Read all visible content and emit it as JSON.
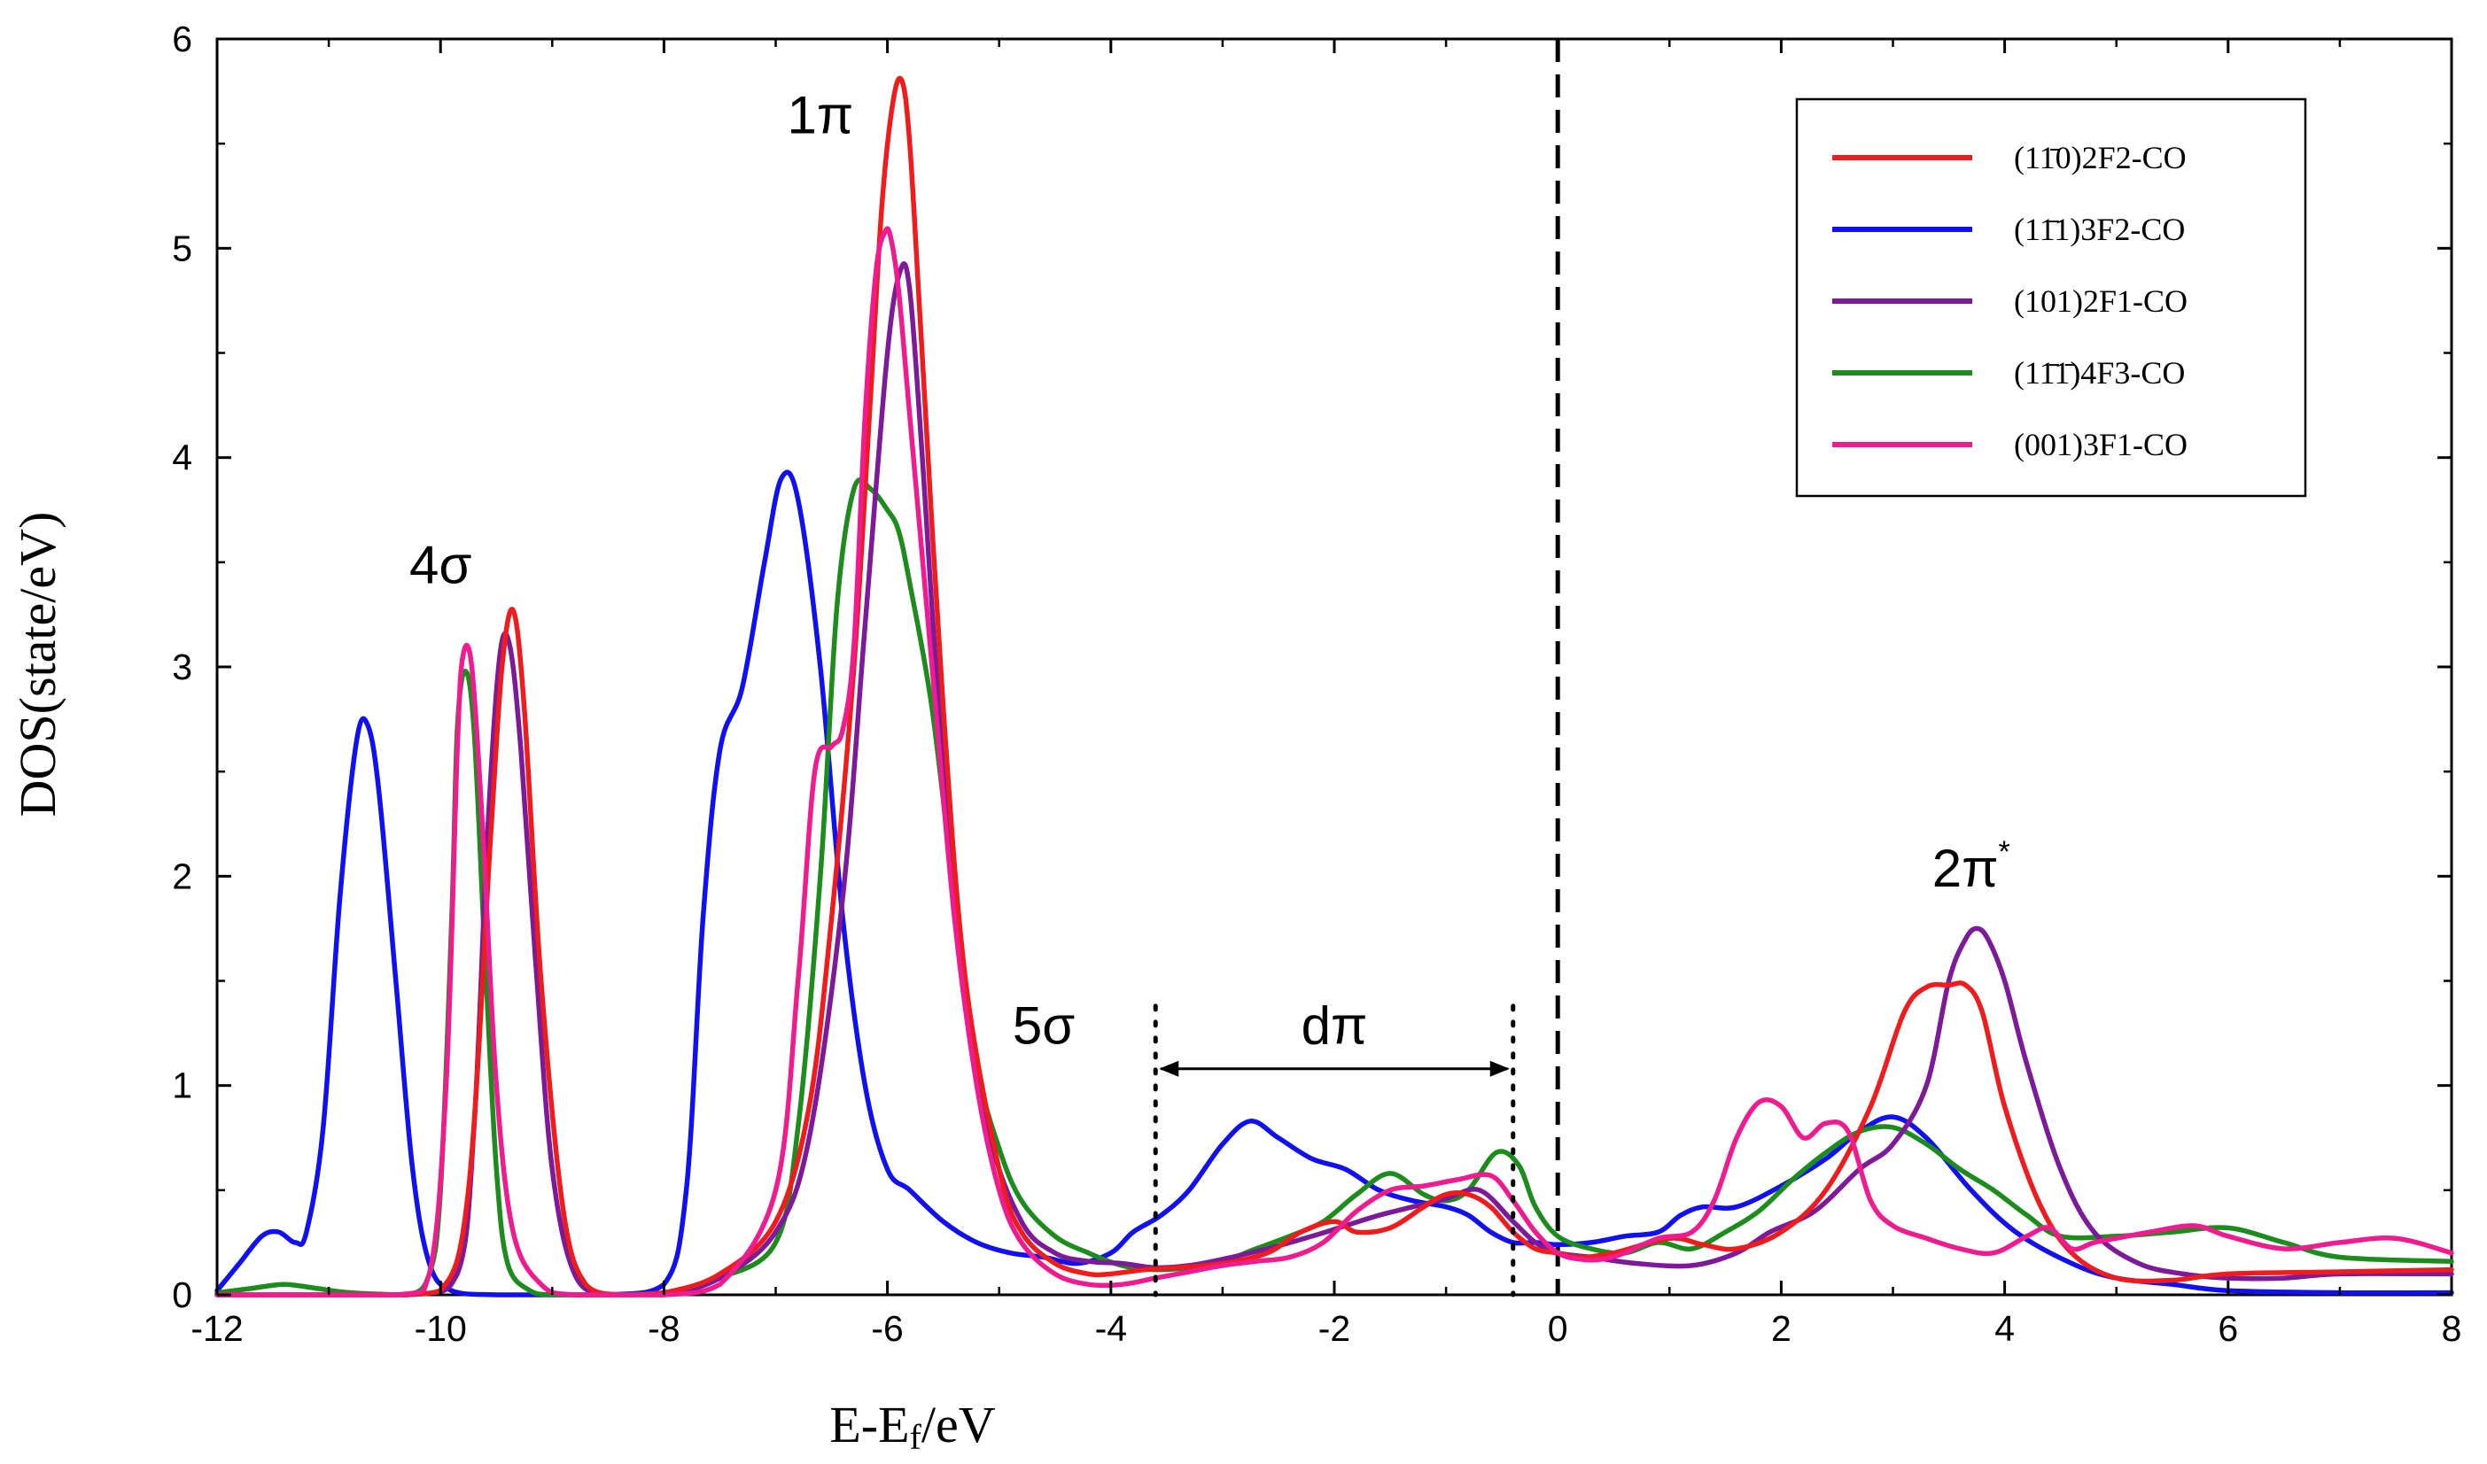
{
  "chart_data": {
    "type": "line",
    "title": "",
    "xlabel": "E-Ef/eV",
    "xlabel_main": "E-E",
    "xlabel_sub": "f",
    "xlabel_tail": "/eV",
    "ylabel": "DOS(state/eV)",
    "xlim": [
      -12,
      8
    ],
    "ylim": [
      0,
      6
    ],
    "xticks": [
      -12,
      -10,
      -8,
      -6,
      -4,
      -2,
      0,
      2,
      4,
      6,
      8
    ],
    "yticks": [
      0,
      1,
      2,
      3,
      4,
      5,
      6
    ],
    "grid": false,
    "legend_position": "top-right",
    "fermi_level_x": 0,
    "annotations": {
      "sigma4": {
        "text": "4σ",
        "x": -10.0,
        "y": 3.4
      },
      "pi1": {
        "text": "1π",
        "x": -6.6,
        "y": 5.55
      },
      "sigma5": {
        "text": "5σ",
        "x": -4.6,
        "y": 1.2
      },
      "dpi": {
        "text": "dπ",
        "x": -2.0,
        "y": 1.2
      },
      "pi2_base": {
        "text": "2π",
        "x": 3.7,
        "y": 1.95
      },
      "pi2_sup": "*"
    },
    "dpi_range": [
      -3.6,
      -0.4
    ],
    "series": [
      {
        "name": "(1-10)2F2-CO",
        "legend_label": "(11̄0)2F2-CO",
        "color": "#ee1c1c",
        "x": [
          -12,
          -10.5,
          -10.0,
          -9.75,
          -9.55,
          -9.45,
          -9.35,
          -9.25,
          -9.1,
          -8.9,
          -8.7,
          -8.4,
          -8.0,
          -7.5,
          -7.0,
          -6.7,
          -6.5,
          -6.3,
          -6.15,
          -6.05,
          -5.95,
          -5.87,
          -5.8,
          -5.7,
          -5.5,
          -5.3,
          -5.0,
          -4.8,
          -4.5,
          -4.2,
          -4.0,
          -3.7,
          -3.4,
          -3.0,
          -2.6,
          -2.3,
          -2.0,
          -1.8,
          -1.5,
          -1.2,
          -1.0,
          -0.8,
          -0.6,
          -0.4,
          -0.2,
          0.0,
          0.2,
          0.5,
          1.0,
          1.3,
          1.6,
          2.0,
          2.4,
          2.8,
          3.1,
          3.3,
          3.5,
          3.65,
          3.8,
          4.0,
          4.3,
          4.6,
          5.0,
          5.5,
          6.0,
          7.0,
          8.0
        ],
        "y": [
          0,
          0,
          0.02,
          0.5,
          2.2,
          3.0,
          3.27,
          2.8,
          1.5,
          0.4,
          0.05,
          0,
          0.01,
          0.1,
          0.35,
          0.9,
          1.8,
          3.0,
          4.3,
          5.2,
          5.7,
          5.8,
          5.5,
          4.6,
          2.8,
          1.5,
          0.6,
          0.3,
          0.15,
          0.1,
          0.1,
          0.12,
          0.13,
          0.15,
          0.2,
          0.3,
          0.35,
          0.3,
          0.32,
          0.42,
          0.48,
          0.48,
          0.42,
          0.3,
          0.22,
          0.2,
          0.18,
          0.2,
          0.27,
          0.24,
          0.22,
          0.3,
          0.5,
          0.9,
          1.35,
          1.47,
          1.48,
          1.48,
          1.35,
          0.9,
          0.45,
          0.2,
          0.08,
          0.07,
          0.1,
          0.11,
          0.12
        ]
      },
      {
        "name": "(1-11)3F2-CO",
        "legend_label": "(11̄1)3F2-CO",
        "color": "#1010f0",
        "x": [
          -12,
          -11.8,
          -11.6,
          -11.45,
          -11.3,
          -11.2,
          -11.05,
          -10.9,
          -10.75,
          -10.65,
          -10.55,
          -10.4,
          -10.25,
          -10.1,
          -9.9,
          -9.5,
          -8.5,
          -8.0,
          -7.8,
          -7.65,
          -7.5,
          -7.3,
          -7.1,
          -6.95,
          -6.8,
          -6.6,
          -6.4,
          -6.2,
          -6.0,
          -5.8,
          -5.5,
          -5.2,
          -4.9,
          -4.6,
          -4.3,
          -4.0,
          -3.8,
          -3.55,
          -3.3,
          -3.0,
          -2.75,
          -2.5,
          -2.2,
          -1.9,
          -1.6,
          -1.3,
          -1.0,
          -0.8,
          -0.6,
          -0.4,
          -0.2,
          0.0,
          0.3,
          0.6,
          0.9,
          1.1,
          1.3,
          1.6,
          2.0,
          2.4,
          2.7,
          3.0,
          3.3,
          3.7,
          4.1,
          4.6,
          5.0,
          5.5,
          6.0,
          7.0,
          8.0
        ],
        "y": [
          0.02,
          0.15,
          0.28,
          0.3,
          0.25,
          0.3,
          0.8,
          1.9,
          2.65,
          2.72,
          2.4,
          1.5,
          0.6,
          0.15,
          0.02,
          0,
          0,
          0.05,
          0.5,
          1.8,
          2.6,
          2.9,
          3.5,
          3.9,
          3.8,
          3.0,
          1.8,
          1.0,
          0.6,
          0.5,
          0.35,
          0.25,
          0.2,
          0.18,
          0.15,
          0.2,
          0.3,
          0.38,
          0.5,
          0.72,
          0.83,
          0.75,
          0.65,
          0.6,
          0.5,
          0.45,
          0.42,
          0.38,
          0.3,
          0.25,
          0.25,
          0.24,
          0.25,
          0.28,
          0.3,
          0.38,
          0.42,
          0.42,
          0.52,
          0.65,
          0.78,
          0.85,
          0.75,
          0.5,
          0.3,
          0.15,
          0.08,
          0.05,
          0.02,
          0.01,
          0.01
        ]
      },
      {
        "name": "(101)2F1-CO",
        "legend_label": "(101)2F1-CO",
        "color": "#7c1a9a",
        "x": [
          -12,
          -10.3,
          -9.85,
          -9.7,
          -9.58,
          -9.47,
          -9.38,
          -9.28,
          -9.15,
          -9.0,
          -8.8,
          -8.5,
          -8.0,
          -7.5,
          -7.0,
          -6.7,
          -6.4,
          -6.2,
          -6.0,
          -5.88,
          -5.8,
          -5.7,
          -5.55,
          -5.35,
          -5.1,
          -4.8,
          -4.5,
          -4.2,
          -3.9,
          -3.6,
          -3.3,
          -3.0,
          -2.6,
          -2.2,
          -1.9,
          -1.6,
          -1.3,
          -1.0,
          -0.7,
          -0.4,
          -0.2,
          0.0,
          0.3,
          0.7,
          1.2,
          1.6,
          1.9,
          2.3,
          2.7,
          3.0,
          3.3,
          3.5,
          3.65,
          3.75,
          3.85,
          4.0,
          4.2,
          4.5,
          4.8,
          5.2,
          5.6,
          6.0,
          6.5,
          7.0,
          8.0
        ],
        "y": [
          0,
          0,
          0.1,
          0.8,
          2.2,
          3.05,
          3.1,
          2.6,
          1.6,
          0.6,
          0.1,
          0,
          0,
          0.08,
          0.3,
          0.75,
          1.9,
          3.2,
          4.5,
          4.9,
          4.8,
          4.1,
          2.9,
          1.7,
          0.8,
          0.35,
          0.2,
          0.16,
          0.15,
          0.13,
          0.14,
          0.17,
          0.22,
          0.28,
          0.33,
          0.38,
          0.42,
          0.46,
          0.5,
          0.35,
          0.25,
          0.2,
          0.18,
          0.15,
          0.14,
          0.2,
          0.3,
          0.4,
          0.6,
          0.72,
          1.0,
          1.5,
          1.7,
          1.75,
          1.7,
          1.5,
          1.1,
          0.6,
          0.3,
          0.15,
          0.1,
          0.08,
          0.08,
          0.1,
          0.1
        ]
      },
      {
        "name": "(1-1-1)4F3-CO",
        "legend_label": "(11̄1̄)4F3-CO",
        "color": "#1c8c1c",
        "x": [
          -12,
          -11.7,
          -11.4,
          -11.1,
          -10.8,
          -10.3,
          -10.1,
          -10.0,
          -9.9,
          -9.85,
          -9.78,
          -9.7,
          -9.6,
          -9.5,
          -9.4,
          -9.2,
          -9.0,
          -8.5,
          -8.0,
          -7.5,
          -7.0,
          -6.8,
          -6.6,
          -6.45,
          -6.3,
          -6.15,
          -6.0,
          -5.9,
          -5.8,
          -5.6,
          -5.4,
          -5.2,
          -5.0,
          -4.8,
          -4.5,
          -4.2,
          -3.9,
          -3.6,
          -3.3,
          -3.0,
          -2.7,
          -2.4,
          -2.1,
          -1.8,
          -1.5,
          -1.2,
          -1.0,
          -0.8,
          -0.55,
          -0.35,
          -0.2,
          0.0,
          0.3,
          0.6,
          0.9,
          1.2,
          1.5,
          1.8,
          2.1,
          2.4,
          2.7,
          3.0,
          3.3,
          3.6,
          3.9,
          4.2,
          4.5,
          5.0,
          5.5,
          6.0,
          6.5,
          7.0,
          8.0
        ],
        "y": [
          0.01,
          0.03,
          0.05,
          0.03,
          0.01,
          0,
          0.1,
          0.5,
          1.8,
          2.7,
          2.98,
          2.7,
          1.6,
          0.6,
          0.15,
          0.02,
          0,
          0,
          0.01,
          0.08,
          0.25,
          0.8,
          2.0,
          3.3,
          3.85,
          3.85,
          3.75,
          3.65,
          3.4,
          2.8,
          1.9,
          1.1,
          0.7,
          0.45,
          0.28,
          0.2,
          0.14,
          0.12,
          0.13,
          0.16,
          0.22,
          0.28,
          0.35,
          0.48,
          0.58,
          0.48,
          0.45,
          0.5,
          0.68,
          0.62,
          0.42,
          0.28,
          0.22,
          0.2,
          0.25,
          0.22,
          0.3,
          0.4,
          0.55,
          0.68,
          0.78,
          0.8,
          0.72,
          0.6,
          0.5,
          0.38,
          0.28,
          0.28,
          0.3,
          0.32,
          0.25,
          0.18,
          0.16
        ]
      },
      {
        "name": "(001)3F1-CO",
        "legend_label": "(001)3F1-CO",
        "color": "#ee1c8e",
        "x": [
          -12,
          -10.4,
          -10.1,
          -9.95,
          -9.85,
          -9.8,
          -9.72,
          -9.62,
          -9.5,
          -9.35,
          -9.1,
          -8.8,
          -8.0,
          -7.5,
          -7.0,
          -6.8,
          -6.65,
          -6.5,
          -6.4,
          -6.3,
          -6.2,
          -6.1,
          -6.02,
          -5.97,
          -5.9,
          -5.8,
          -5.6,
          -5.4,
          -5.2,
          -5.0,
          -4.8,
          -4.5,
          -4.2,
          -3.9,
          -3.6,
          -3.3,
          -3.0,
          -2.7,
          -2.4,
          -2.1,
          -1.8,
          -1.5,
          -1.2,
          -0.9,
          -0.6,
          -0.4,
          -0.2,
          0.0,
          0.2,
          0.4,
          0.6,
          0.9,
          1.2,
          1.4,
          1.6,
          1.8,
          2.0,
          2.2,
          2.4,
          2.6,
          2.8,
          3.0,
          3.3,
          3.6,
          3.9,
          4.2,
          4.4,
          4.6,
          4.8,
          5.0,
          5.3,
          5.7,
          6.0,
          6.5,
          7.0,
          7.5,
          8.0
        ],
        "y": [
          0,
          0,
          0.1,
          1.0,
          2.6,
          3.05,
          3.0,
          2.2,
          1.0,
          0.3,
          0.05,
          0,
          0,
          0.05,
          0.5,
          1.5,
          2.5,
          2.62,
          2.7,
          3.1,
          4.2,
          4.9,
          5.08,
          5.05,
          4.8,
          4.2,
          3.0,
          1.8,
          1.0,
          0.5,
          0.25,
          0.1,
          0.05,
          0.05,
          0.08,
          0.11,
          0.14,
          0.16,
          0.18,
          0.25,
          0.4,
          0.5,
          0.52,
          0.55,
          0.57,
          0.45,
          0.3,
          0.2,
          0.17,
          0.17,
          0.2,
          0.27,
          0.3,
          0.45,
          0.75,
          0.92,
          0.9,
          0.75,
          0.82,
          0.78,
          0.45,
          0.33,
          0.27,
          0.22,
          0.2,
          0.28,
          0.32,
          0.22,
          0.25,
          0.27,
          0.3,
          0.33,
          0.28,
          0.22,
          0.25,
          0.27,
          0.2
        ]
      }
    ]
  }
}
